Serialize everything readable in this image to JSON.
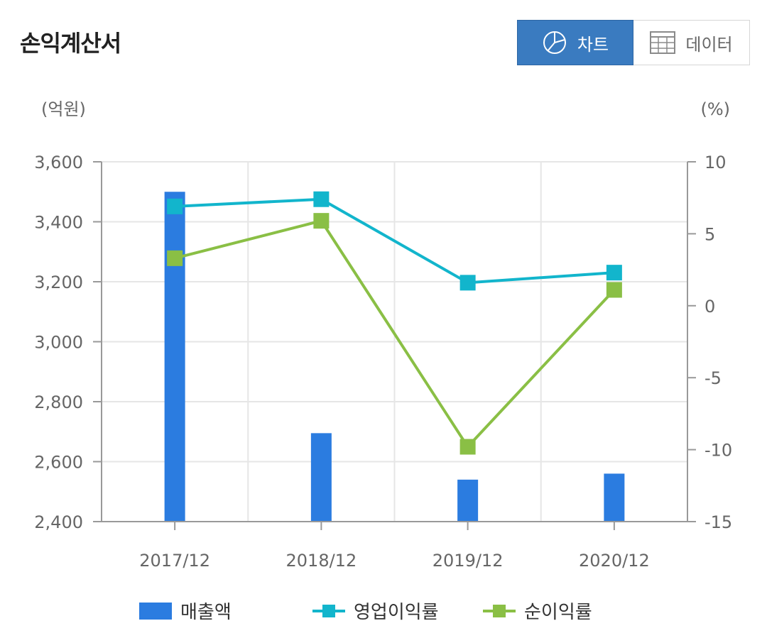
{
  "header": {
    "title": "손익계산서",
    "toggle_chart_label": "차트",
    "toggle_data_label": "데이터",
    "chart_icon": "pie-chart-icon",
    "data_icon": "table-grid-icon"
  },
  "chart_data": {
    "type": "bar+line",
    "categories": [
      "2017/12",
      "2018/12",
      "2019/12",
      "2020/12"
    ],
    "left_axis": {
      "unit": "(억원)",
      "ylim": [
        2400,
        3600
      ],
      "ticks": [
        2400,
        2600,
        2800,
        3000,
        3200,
        3400,
        3600
      ]
    },
    "right_axis": {
      "unit": "(%)",
      "ylim": [
        -15,
        10
      ],
      "ticks": [
        -15,
        -10,
        -5,
        0,
        5,
        10
      ]
    },
    "series": [
      {
        "name": "매출액",
        "type": "bar",
        "axis": "left",
        "color": "#2b7ce0",
        "values": [
          3500,
          2695,
          2540,
          2560
        ]
      },
      {
        "name": "영업이익률",
        "type": "line",
        "axis": "right",
        "color": "#12b5cc",
        "values": [
          6.9,
          7.4,
          1.6,
          2.3
        ]
      },
      {
        "name": "순이익률",
        "type": "line",
        "axis": "right",
        "color": "#8abf45",
        "values": [
          3.3,
          5.9,
          -9.8,
          1.1
        ]
      }
    ],
    "grid": true,
    "legend_position": "bottom"
  }
}
